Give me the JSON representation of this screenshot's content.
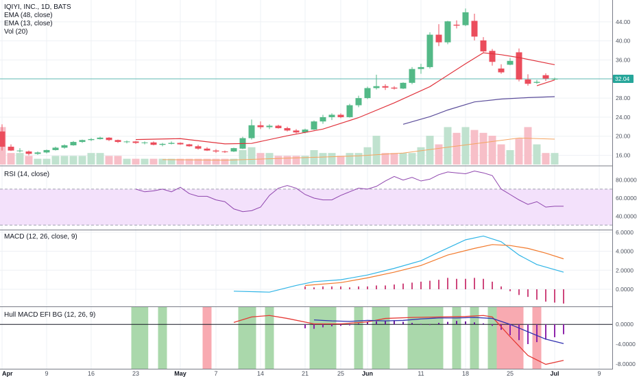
{
  "colors": {
    "up": "#26a69a",
    "up_fill": "#53b987",
    "down": "#eb4d5c",
    "ema48": "#5b4d9a",
    "ema13": "#e0323b",
    "vol_up": "#c0e2cf",
    "vol_down": "#f7bfc8",
    "vol_ma": "#f4a460",
    "rsi": "#8e44ad",
    "rsi_band": "#f3e1fb",
    "macd": "#2eb4e6",
    "signal": "#f2792b",
    "hist": "#c2185b",
    "bg_green": "#a5d6a7",
    "bg_red": "#f8a5ad",
    "hull_fast": "#2f2fb0",
    "hull_slow": "#e53935",
    "current_price_line": "#26a69a",
    "current_price_badge": "#26a69a",
    "grid": "#eef0f4"
  },
  "legend": {
    "title": "IQIYI, INC., 1D, BATS",
    "ema1": "EMA (48, close)",
    "ema2": "EMA (13, close)",
    "vol": "Vol (20)"
  },
  "panels": {
    "rsi": "RSI (14, close)",
    "macd": "MACD (12, 26, close, 9)",
    "hull": "Hull MACD EFI BG (12, 26, 9)"
  },
  "price_axis": [
    "44.00",
    "40.00",
    "36.00",
    "32.00",
    "28.00",
    "24.00",
    "20.00",
    "16.00"
  ],
  "current_price": "32.04",
  "rsi_axis": [
    "80.0000",
    "60.0000",
    "40.0000"
  ],
  "macd_axis": [
    "6.0000",
    "4.0000",
    "2.0000",
    "0.0000"
  ],
  "hull_axis": [
    "0.0000",
    "-4.0000",
    "-8.0000"
  ],
  "date_axis": [
    {
      "label": "Apr",
      "i": 0,
      "month": true
    },
    {
      "label": "9",
      "i": 5
    },
    {
      "label": "16",
      "i": 10
    },
    {
      "label": "23",
      "i": 15
    },
    {
      "label": "May",
      "i": 20,
      "month": true
    },
    {
      "label": "7",
      "i": 24
    },
    {
      "label": "14",
      "i": 29
    },
    {
      "label": "21",
      "i": 34
    },
    {
      "label": "25",
      "i": 38
    },
    {
      "label": "Jun",
      "i": 41,
      "month": true
    },
    {
      "label": "11",
      "i": 47
    },
    {
      "label": "18",
      "i": 52
    },
    {
      "label": "25",
      "i": 57
    },
    {
      "label": "Jul",
      "i": 62,
      "month": true
    },
    {
      "label": "9",
      "i": 67
    }
  ],
  "chart_data": {
    "type": "candlestick",
    "title": "IQIYI, INC., 1D, BATS",
    "ylim": [
      14.5,
      48
    ],
    "candles": [
      [
        21.0,
        22.5,
        17.0,
        17.8
      ],
      [
        17.8,
        18.3,
        16.9,
        17.0
      ],
      [
        17.0,
        17.5,
        16.6,
        17.0
      ],
      [
        16.8,
        17.0,
        16.0,
        16.3
      ],
      [
        16.3,
        16.8,
        16.1,
        16.6
      ],
      [
        16.6,
        17.2,
        16.4,
        17.1
      ],
      [
        17.1,
        17.8,
        17.0,
        17.6
      ],
      [
        17.6,
        18.3,
        17.4,
        18.1
      ],
      [
        18.1,
        19.0,
        18.0,
        18.8
      ],
      [
        18.8,
        19.3,
        18.6,
        19.2
      ],
      [
        19.2,
        19.6,
        19.0,
        19.4
      ],
      [
        19.4,
        19.9,
        19.3,
        19.7
      ],
      [
        19.7,
        19.8,
        19.0,
        19.2
      ],
      [
        19.2,
        19.3,
        18.6,
        18.8
      ],
      [
        18.8,
        19.1,
        18.5,
        18.9
      ],
      [
        18.9,
        19.0,
        18.4,
        18.6
      ],
      [
        18.6,
        18.9,
        18.3,
        18.7
      ],
      [
        18.7,
        18.9,
        18.1,
        18.2
      ],
      [
        18.2,
        18.6,
        17.9,
        18.4
      ],
      [
        18.4,
        18.9,
        18.3,
        18.6
      ],
      [
        18.6,
        18.7,
        18.2,
        18.3
      ],
      [
        18.3,
        18.4,
        17.8,
        17.9
      ],
      [
        17.9,
        18.2,
        17.2,
        17.4
      ],
      [
        17.4,
        17.7,
        16.9,
        17.0
      ],
      [
        17.0,
        17.3,
        16.5,
        16.8
      ],
      [
        16.8,
        17.0,
        16.5,
        16.7
      ],
      [
        16.8,
        17.6,
        16.7,
        17.5
      ],
      [
        17.4,
        19.9,
        17.3,
        19.6
      ],
      [
        19.6,
        23.5,
        19.3,
        22.3
      ],
      [
        22.3,
        23.1,
        21.5,
        21.9
      ],
      [
        21.9,
        22.5,
        21.5,
        22.2
      ],
      [
        22.2,
        22.4,
        21.6,
        21.7
      ],
      [
        21.7,
        22.0,
        21.0,
        21.2
      ],
      [
        21.2,
        21.5,
        20.6,
        20.8
      ],
      [
        20.8,
        21.6,
        20.6,
        21.4
      ],
      [
        21.4,
        23.3,
        21.3,
        23.1
      ],
      [
        23.1,
        24.5,
        22.6,
        24.0
      ],
      [
        24.0,
        24.8,
        23.4,
        24.5
      ],
      [
        24.5,
        24.8,
        23.8,
        24.0
      ],
      [
        24.0,
        26.8,
        23.9,
        26.5
      ],
      [
        26.5,
        28.5,
        26.1,
        28.0
      ],
      [
        28.0,
        30.4,
        27.8,
        30.1
      ],
      [
        30.1,
        32.9,
        29.8,
        30.5
      ],
      [
        30.5,
        30.9,
        29.7,
        30.2
      ],
      [
        30.2,
        30.5,
        29.8,
        30.0
      ],
      [
        30.0,
        31.3,
        29.9,
        31.2
      ],
      [
        31.2,
        34.5,
        30.9,
        34.1
      ],
      [
        34.1,
        35.2,
        33.1,
        34.5
      ],
      [
        34.5,
        41.8,
        34.2,
        41.3
      ],
      [
        41.3,
        43.5,
        38.9,
        39.7
      ],
      [
        39.7,
        44.2,
        39.3,
        44.1
      ],
      [
        43.4,
        44.3,
        42.6,
        43.2
      ],
      [
        43.3,
        46.8,
        43.1,
        46.0
      ],
      [
        44.2,
        45.7,
        40.1,
        40.9
      ],
      [
        40.1,
        40.8,
        37.6,
        37.8
      ],
      [
        37.9,
        38.3,
        34.8,
        35.6
      ],
      [
        34.2,
        35.1,
        33.1,
        33.4
      ],
      [
        35.0,
        36.4,
        34.9,
        35.8
      ],
      [
        37.6,
        38.4,
        31.5,
        31.9
      ],
      [
        31.9,
        33.0,
        30.6,
        31.0
      ],
      [
        31.2,
        31.8,
        31.0,
        31.4
      ],
      [
        32.8,
        33.2,
        31.6,
        32.1
      ],
      [
        32.04,
        32.3,
        31.8,
        32.04
      ]
    ],
    "ema13": [
      [
        15,
        19.3
      ],
      [
        20,
        19.5
      ],
      [
        25,
        18.4
      ],
      [
        28,
        18.5
      ],
      [
        32,
        20.1
      ],
      [
        36,
        21.5
      ],
      [
        40,
        23.9
      ],
      [
        44,
        27.0
      ],
      [
        48,
        30.4
      ],
      [
        52,
        35.2
      ],
      [
        54,
        37.5
      ],
      [
        56,
        37.1
      ],
      [
        58,
        36.5
      ],
      [
        62,
        35.0
      ]
    ],
    "ema13_b": [
      [
        60,
        30.6
      ],
      [
        62,
        31.8
      ]
    ],
    "ema48": [
      [
        45,
        22.5
      ],
      [
        48,
        24.1
      ],
      [
        50,
        25.5
      ],
      [
        53,
        27.2
      ],
      [
        56,
        27.8
      ],
      [
        59,
        28.1
      ],
      [
        62,
        28.3
      ]
    ],
    "volume": [
      13,
      4,
      4,
      3,
      2,
      2,
      3,
      3,
      3,
      3,
      4,
      4,
      3,
      3,
      2,
      2,
      2,
      2,
      2,
      2,
      2,
      2,
      2,
      2,
      2,
      2,
      2,
      5,
      6,
      4,
      4,
      3,
      3,
      3,
      3,
      5,
      4,
      4,
      3,
      4,
      4,
      6,
      10,
      4,
      4,
      4,
      4,
      6,
      10,
      7,
      13,
      11,
      13,
      12,
      11,
      10,
      7,
      5,
      9,
      13,
      7,
      4,
      4
    ],
    "vol_ma": [
      [
        18,
        1.7
      ],
      [
        25,
        1.5
      ],
      [
        30,
        2.0
      ],
      [
        35,
        2.5
      ],
      [
        40,
        3.0
      ],
      [
        45,
        4.0
      ],
      [
        50,
        6.0
      ],
      [
        54,
        7.6
      ],
      [
        58,
        9.2
      ],
      [
        62,
        8.8
      ]
    ],
    "rsi": [
      [
        15,
        70
      ],
      [
        16,
        67
      ],
      [
        17,
        68
      ],
      [
        18,
        70
      ],
      [
        19,
        67
      ],
      [
        20,
        72
      ],
      [
        21,
        65
      ],
      [
        22,
        62
      ],
      [
        23,
        62
      ],
      [
        24,
        58
      ],
      [
        25,
        56
      ],
      [
        26,
        48
      ],
      [
        27,
        45
      ],
      [
        28,
        46
      ],
      [
        29,
        50
      ],
      [
        30,
        63
      ],
      [
        31,
        71
      ],
      [
        32,
        74
      ],
      [
        33,
        71
      ],
      [
        34,
        64
      ],
      [
        35,
        60
      ],
      [
        36,
        58
      ],
      [
        37,
        58
      ],
      [
        38,
        63
      ],
      [
        39,
        67
      ],
      [
        40,
        71
      ],
      [
        41,
        70
      ],
      [
        42,
        73
      ],
      [
        43,
        79
      ],
      [
        44,
        84
      ],
      [
        45,
        80
      ],
      [
        46,
        83
      ],
      [
        47,
        79
      ],
      [
        48,
        81
      ],
      [
        49,
        86
      ],
      [
        50,
        89
      ],
      [
        51,
        88
      ],
      [
        52,
        87
      ],
      [
        53,
        90
      ],
      [
        54,
        88
      ],
      [
        55,
        85
      ],
      [
        56,
        70
      ],
      [
        57,
        64
      ],
      [
        58,
        58
      ],
      [
        59,
        53
      ],
      [
        60,
        56
      ],
      [
        61,
        50
      ],
      [
        62,
        51
      ],
      [
        63,
        51
      ]
    ],
    "rsi_band": [
      30,
      70
    ],
    "rsi_ylim": [
      25,
      95
    ],
    "macd": [
      [
        26,
        -0.2
      ],
      [
        30,
        -0.3
      ],
      [
        33,
        0.4
      ],
      [
        35,
        0.8
      ],
      [
        38,
        1.0
      ],
      [
        41,
        1.5
      ],
      [
        44,
        2.2
      ],
      [
        47,
        3.0
      ],
      [
        49,
        3.9
      ],
      [
        52,
        5.2
      ],
      [
        54,
        5.6
      ],
      [
        56,
        5.0
      ],
      [
        58,
        3.6
      ],
      [
        60,
        2.6
      ],
      [
        63,
        1.8
      ]
    ],
    "signal": [
      [
        34,
        0.4
      ],
      [
        38,
        0.7
      ],
      [
        41,
        1.2
      ],
      [
        44,
        1.8
      ],
      [
        47,
        2.5
      ],
      [
        50,
        3.6
      ],
      [
        53,
        4.3
      ],
      [
        55,
        4.7
      ],
      [
        57,
        4.6
      ],
      [
        59,
        4.3
      ],
      [
        61,
        3.8
      ],
      [
        63,
        3.2
      ]
    ],
    "macd_hist": [
      [
        34,
        0.3
      ],
      [
        35,
        0.2
      ],
      [
        36,
        0.3
      ],
      [
        37,
        0.3
      ],
      [
        38,
        0.3
      ],
      [
        39,
        0.2
      ],
      [
        40,
        0.3
      ],
      [
        41,
        0.3
      ],
      [
        42,
        0.4
      ],
      [
        43,
        0.4
      ],
      [
        44,
        0.5
      ],
      [
        45,
        0.6
      ],
      [
        46,
        0.7
      ],
      [
        47,
        0.8
      ],
      [
        48,
        0.9
      ],
      [
        49,
        1.0
      ],
      [
        50,
        1.2
      ],
      [
        51,
        1.1
      ],
      [
        52,
        1.1
      ],
      [
        53,
        1.2
      ],
      [
        54,
        1.1
      ],
      [
        55,
        0.8
      ],
      [
        56,
        0.3
      ],
      [
        57,
        -0.2
      ],
      [
        58,
        -0.6
      ],
      [
        59,
        -0.8
      ],
      [
        60,
        -1.1
      ],
      [
        61,
        -1.3
      ],
      [
        62,
        -1.4
      ],
      [
        63,
        -1.5
      ]
    ],
    "macd_ylim": [
      -1.8,
      6.2
    ],
    "hull_fast": [
      [
        35,
        0.9
      ],
      [
        37,
        0.7
      ],
      [
        39,
        0.6
      ],
      [
        41,
        0.8
      ],
      [
        43,
        0.7
      ],
      [
        45,
        0.8
      ],
      [
        47,
        1.1
      ],
      [
        49,
        1.3
      ],
      [
        51,
        1.3
      ],
      [
        53,
        1.4
      ],
      [
        55,
        1.2
      ],
      [
        57,
        0.0
      ],
      [
        59,
        -1.5
      ],
      [
        61,
        -3.0
      ],
      [
        63,
        -3.9
      ]
    ],
    "hull_slow": [
      [
        26,
        0.4
      ],
      [
        28,
        1.5
      ],
      [
        30,
        1.8
      ],
      [
        32,
        1.2
      ],
      [
        35,
        0.1
      ],
      [
        38,
        0.1
      ],
      [
        41,
        0.5
      ],
      [
        43,
        1.2
      ],
      [
        46,
        1.4
      ],
      [
        49,
        1.5
      ],
      [
        52,
        1.6
      ],
      [
        54,
        1.8
      ],
      [
        55,
        1.5
      ],
      [
        57,
        -2.5
      ],
      [
        59,
        -6.3
      ],
      [
        61,
        -8.1
      ],
      [
        63,
        -7.3
      ]
    ],
    "hull_hist": [
      [
        34,
        -0.8
      ],
      [
        35,
        -0.9
      ],
      [
        36,
        -0.6
      ],
      [
        37,
        -0.4
      ],
      [
        38,
        -0.3
      ],
      [
        39,
        -0.2
      ],
      [
        40,
        0.2
      ],
      [
        41,
        0.5
      ],
      [
        42,
        0.6
      ],
      [
        43,
        0.7
      ],
      [
        44,
        0.8
      ],
      [
        45,
        0.5
      ],
      [
        46,
        0.3
      ],
      [
        47,
        0.1
      ],
      [
        48,
        -0.1
      ],
      [
        49,
        0.3
      ],
      [
        50,
        0.5
      ],
      [
        51,
        0.7
      ],
      [
        52,
        0.6
      ],
      [
        53,
        0.4
      ],
      [
        54,
        0.2
      ],
      [
        55,
        -0.3
      ],
      [
        56,
        -1.1
      ],
      [
        57,
        -2.2
      ],
      [
        58,
        -3.2
      ],
      [
        59,
        -4.0
      ],
      [
        60,
        -3.6
      ],
      [
        61,
        -3.1
      ],
      [
        62,
        -2.6
      ],
      [
        63,
        -2.0
      ]
    ],
    "hull_bg": [
      {
        "from": 14.5,
        "to": 16.4,
        "c": "green"
      },
      {
        "from": 17.5,
        "to": 18.5,
        "c": "green"
      },
      {
        "from": 22.5,
        "to": 23.5,
        "c": "red"
      },
      {
        "from": 26.5,
        "to": 28.5,
        "c": "green"
      },
      {
        "from": 29.5,
        "to": 30.5,
        "c": "green"
      },
      {
        "from": 34.5,
        "to": 37.5,
        "c": "green"
      },
      {
        "from": 39.5,
        "to": 40.5,
        "c": "green"
      },
      {
        "from": 41.5,
        "to": 43.5,
        "c": "green"
      },
      {
        "from": 45.5,
        "to": 49.5,
        "c": "green"
      },
      {
        "from": 50.5,
        "to": 51.5,
        "c": "green"
      },
      {
        "from": 52.5,
        "to": 53.5,
        "c": "green"
      },
      {
        "from": 54.5,
        "to": 55.5,
        "c": "green"
      },
      {
        "from": 55.5,
        "to": 58.5,
        "c": "red"
      },
      {
        "from": 59.5,
        "to": 60.5,
        "c": "red"
      }
    ],
    "hull_ylim": [
      -9,
      3.5
    ]
  }
}
